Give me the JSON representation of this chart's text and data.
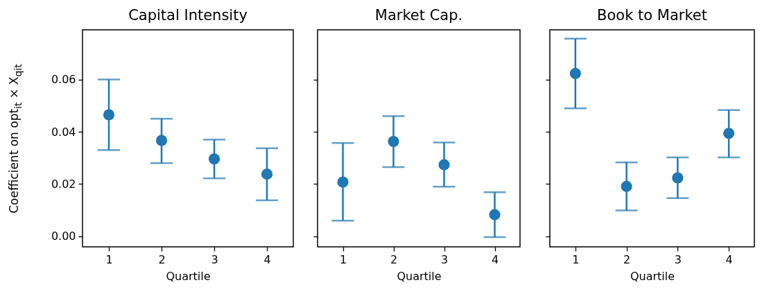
{
  "chart_data": [
    {
      "type": "scatter",
      "title": "Capital Intensity",
      "xlabel": "Quartile",
      "ylabel": "Coefficient on opt$_{it}$ × X$_{qit}$",
      "categories": [
        "1",
        "2",
        "3",
        "4"
      ],
      "marker": "circle",
      "grid": false,
      "ylim": [
        -0.004,
        0.079
      ],
      "yticks": [
        {
          "value": 0,
          "label": "0.00"
        },
        {
          "value": 0.02,
          "label": "0.02"
        },
        {
          "value": 0.04,
          "label": "0.04"
        },
        {
          "value": 0.06,
          "label": "0.06"
        }
      ],
      "series": [
        {
          "color": "#1f77b4",
          "values": [
            0.0465,
            0.0367,
            0.0296,
            0.0238
          ],
          "errors": [
            [
              0.033,
              0.06
            ],
            [
              0.028,
              0.045
            ],
            [
              0.0222,
              0.037
            ],
            [
              0.0138,
              0.0337
            ]
          ]
        }
      ]
    },
    {
      "type": "scatter",
      "title": "Market Cap.",
      "xlabel": "Quartile",
      "categories": [
        "1",
        "2",
        "3",
        "4"
      ],
      "marker": "circle",
      "grid": false,
      "tick_labels": "x",
      "ylim": [
        -0.004,
        0.079
      ],
      "yticks": [
        0,
        0.02,
        0.04,
        0.06
      ],
      "series": [
        {
          "color": "#1f77b4",
          "values": [
            0.0208,
            0.0363,
            0.0274,
            0.0083
          ],
          "errors": [
            [
              0.006,
              0.0357
            ],
            [
              0.0265,
              0.046
            ],
            [
              0.019,
              0.0359
            ],
            [
              -0.0003,
              0.0169
            ]
          ]
        }
      ]
    },
    {
      "type": "scatter",
      "title": "Book to Market",
      "xlabel": "Quartile",
      "categories": [
        "1",
        "2",
        "3",
        "4"
      ],
      "marker": "circle",
      "grid": false,
      "tick_labels": "x",
      "ylim": [
        -0.004,
        0.079
      ],
      "yticks": [
        0,
        0.02,
        0.04,
        0.06
      ],
      "series": [
        {
          "color": "#1f77b4",
          "values": [
            0.0623,
            0.0191,
            0.0224,
            0.0394
          ],
          "errors": [
            [
              0.049,
              0.0756
            ],
            [
              0.0099,
              0.0283
            ],
            [
              0.0146,
              0.0302
            ],
            [
              0.0302,
              0.0483
            ]
          ]
        }
      ]
    }
  ]
}
